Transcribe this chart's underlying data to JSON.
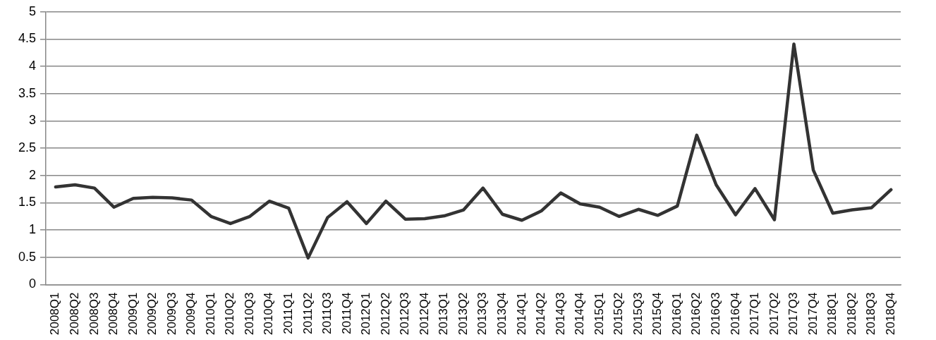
{
  "chart_data": {
    "type": "line",
    "categories": [
      "2008Q1",
      "2008Q2",
      "2008Q3",
      "2008Q4",
      "2009Q1",
      "2009Q2",
      "2009Q3",
      "2009Q4",
      "2010Q1",
      "2010Q2",
      "2010Q3",
      "2010Q4",
      "2011Q1",
      "2011Q2",
      "2011Q3",
      "2011Q4",
      "2012Q1",
      "2012Q2",
      "2012Q3",
      "2012Q4",
      "2013Q1",
      "2013Q2",
      "2013Q3",
      "2013Q4",
      "2014Q1",
      "2014Q2",
      "2014Q3",
      "2014Q4",
      "2015Q1",
      "2015Q2",
      "2015Q3",
      "2015Q4",
      "2016Q1",
      "2016Q2",
      "2016Q3",
      "2016Q4",
      "2017Q1",
      "2017Q2",
      "2017Q3",
      "2017Q4",
      "2018Q1",
      "2018Q2",
      "2018Q3",
      "2018Q4"
    ],
    "series": [
      {
        "color": "#333333",
        "values": [
          1.79,
          1.83,
          1.77,
          1.42,
          1.58,
          1.6,
          1.59,
          1.55,
          1.25,
          1.12,
          1.25,
          1.53,
          1.4,
          0.49,
          1.23,
          1.52,
          1.12,
          1.53,
          1.2,
          1.21,
          1.26,
          1.37,
          1.77,
          1.29,
          1.18,
          1.35,
          1.68,
          1.48,
          1.42,
          1.25,
          1.38,
          1.27,
          1.44,
          2.74,
          1.83,
          1.28,
          1.76,
          1.19,
          4.41,
          2.1,
          1.31,
          1.37,
          1.41,
          1.74
        ]
      }
    ],
    "ylim": [
      0,
      5
    ],
    "yticks": [
      0,
      0.5,
      1,
      1.5,
      2,
      2.5,
      3,
      3.5,
      4,
      4.5,
      5
    ],
    "grid": "y",
    "legend": false,
    "marker": "none",
    "line_style": "solid"
  }
}
